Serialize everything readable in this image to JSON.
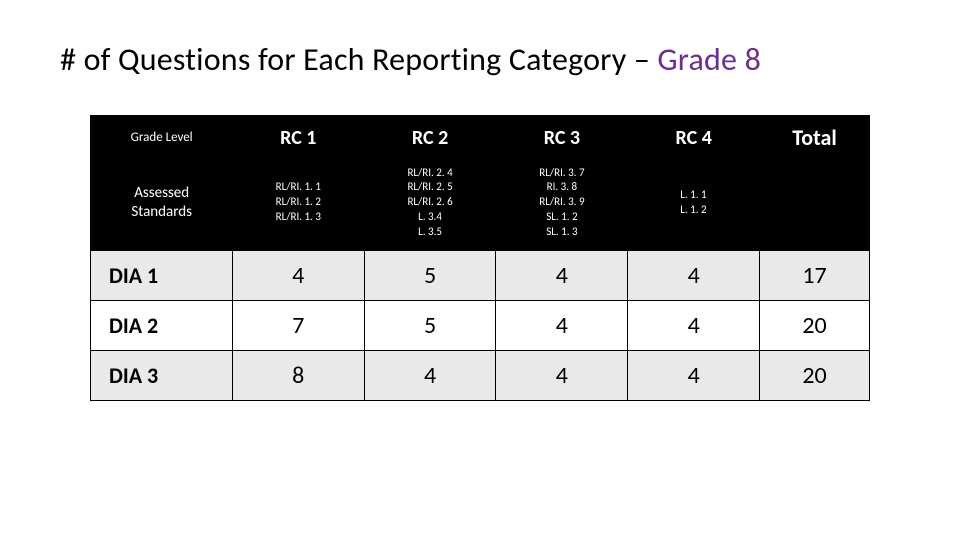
{
  "title_main": "# of Questions for Each Reporting Category – ",
  "title_accent": "Grade 8",
  "table": {
    "header_gradelevel": "Grade Level",
    "header_assessed": "Assessed Standards",
    "header_total": "Total",
    "columns": [
      {
        "label": "RC 1",
        "standards": [
          "RL/RI. 1. 1",
          "RL/RI. 1. 2",
          "RL/RI. 1. 3"
        ]
      },
      {
        "label": "RC 2",
        "standards": [
          "RL/RI. 2. 4",
          "RL/RI. 2. 5",
          "RL/RI. 2. 6",
          "L. 3.4",
          "L. 3.5"
        ]
      },
      {
        "label": "RC 3",
        "standards": [
          "RL/RI. 3. 7",
          "RI. 3. 8",
          "RL/RI. 3. 9",
          "SL. 1. 2",
          "SL. 1. 3"
        ]
      },
      {
        "label": "RC 4",
        "standards": [
          "L. 1. 1",
          "L. 1. 2"
        ]
      }
    ],
    "rows": [
      {
        "label": "DIA 1",
        "values": [
          4,
          5,
          4,
          4
        ],
        "total": 17,
        "alt": true
      },
      {
        "label": "DIA 2",
        "values": [
          7,
          5,
          4,
          4
        ],
        "total": 20,
        "alt": false
      },
      {
        "label": "DIA 3",
        "values": [
          8,
          4,
          4,
          4
        ],
        "total": 20,
        "alt": true
      }
    ],
    "colors": {
      "header_bg": "#000000",
      "header_fg": "#ffffff",
      "row_alt_bg": "#e9e9e9",
      "border": "#000000",
      "accent": "#6e2b90"
    },
    "fonts": {
      "title_size_pt": 24,
      "header_size_pt": 15,
      "standards_size_pt": 8,
      "data_size_pt": 18,
      "rowlabel_size_pt": 16
    }
  }
}
